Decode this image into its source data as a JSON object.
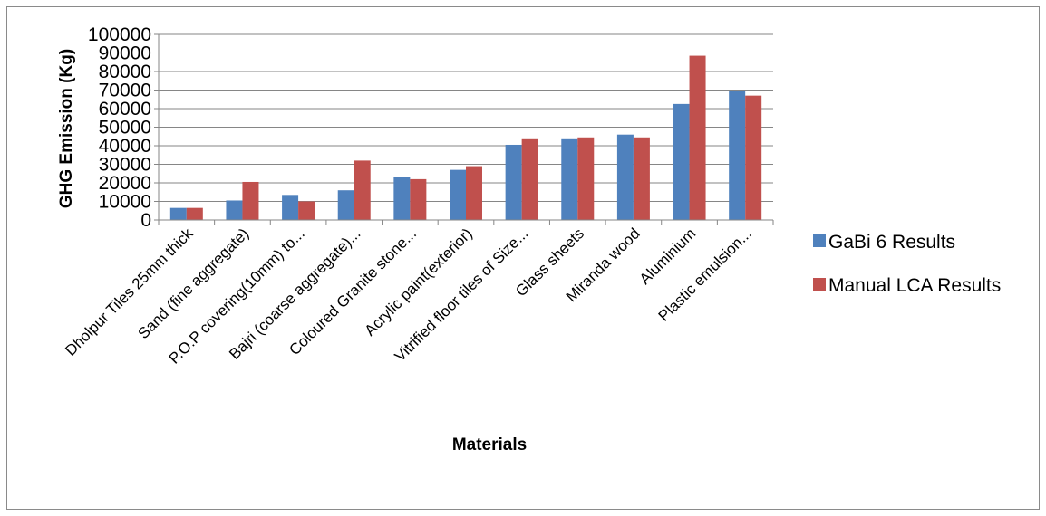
{
  "chart_data": {
    "type": "bar",
    "title": "",
    "xlabel": "Materials",
    "ylabel": "GHG Emission (Kg)",
    "ylim": [
      0,
      100000
    ],
    "yticks": [
      0,
      10000,
      20000,
      30000,
      40000,
      50000,
      60000,
      70000,
      80000,
      90000,
      100000
    ],
    "grid": true,
    "legend_position": "right",
    "categories": [
      "Dholpur Tiles 25mm thick",
      "Sand (fine aggregate)",
      "P.O.P covering(10mm) to...",
      "Bajri (coarse aggregate)...",
      "Coloured Granite stone...",
      "Acrylic paint(exterior)",
      "Vitrified floor tiles of Size...",
      "Glass sheets",
      "Miranda wood",
      "Aluminium",
      "Plastic emulsion..."
    ],
    "series": [
      {
        "name": "GaBi 6 Results",
        "color": "#4F81BD",
        "values": [
          6500,
          10500,
          13500,
          16000,
          23000,
          27000,
          40500,
          44000,
          46000,
          62500,
          69500
        ]
      },
      {
        "name": "Manual LCA Results",
        "color": "#C0504D",
        "values": [
          6500,
          20500,
          10000,
          32000,
          22000,
          29000,
          44000,
          44500,
          44500,
          88500,
          67000
        ]
      }
    ]
  }
}
